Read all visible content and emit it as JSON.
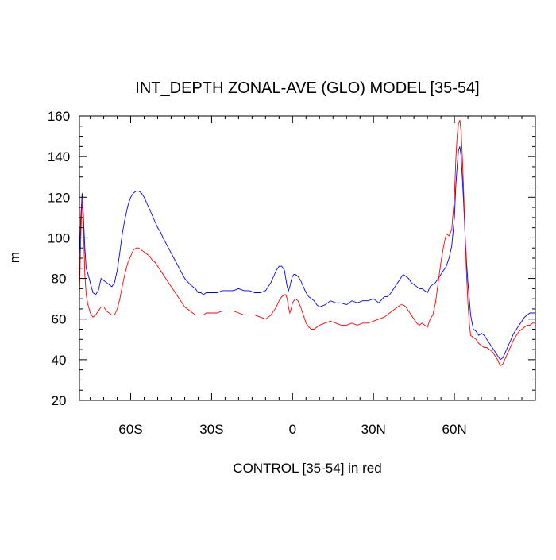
{
  "chart_data": {
    "type": "line",
    "title": "INT_DEPTH ZONAL-AVE (GLO) MODEL [35-54]",
    "xlabel": "CONTROL [35-54] in red",
    "ylabel": "m",
    "xlim": [
      -79,
      90
    ],
    "ylim": [
      20,
      160
    ],
    "x_ticks": [
      {
        "value": -60,
        "label": "60S"
      },
      {
        "value": -30,
        "label": "30S"
      },
      {
        "value": 0,
        "label": "0"
      },
      {
        "value": 30,
        "label": "30N"
      },
      {
        "value": 60,
        "label": "60N"
      }
    ],
    "y_ticks": [
      20,
      40,
      60,
      80,
      100,
      120,
      140,
      160
    ],
    "grid": false,
    "series": [
      {
        "color": "#0000ff",
        "x": [
          -79,
          -78.5,
          -78,
          -77.5,
          -77,
          -76.5,
          -76,
          -75,
          -74,
          -73,
          -72,
          -71,
          -70,
          -69,
          -68,
          -67,
          -66,
          -65,
          -64,
          -63,
          -62,
          -61,
          -60,
          -59,
          -58,
          -57,
          -56,
          -55,
          -54,
          -53,
          -52,
          -51,
          -50,
          -49,
          -48,
          -46,
          -44,
          -42,
          -40,
          -38,
          -36,
          -35,
          -34,
          -33,
          -32,
          -31,
          -30,
          -29,
          -28,
          -26,
          -24,
          -22,
          -20,
          -18,
          -16,
          -14,
          -12,
          -10,
          -8,
          -7,
          -6,
          -5,
          -4,
          -3,
          -2.5,
          -2,
          -1.5,
          -1,
          -0.5,
          0,
          0.5,
          1,
          2,
          3,
          4,
          5,
          6,
          7,
          8,
          9,
          10,
          12,
          14,
          16,
          18,
          20,
          22,
          24,
          26,
          28,
          30,
          32,
          34,
          35,
          36,
          37,
          38,
          39,
          40,
          41,
          42,
          43,
          44,
          45,
          46,
          47,
          48,
          49,
          50,
          51,
          52,
          53,
          54,
          55,
          56,
          57,
          58,
          59,
          60,
          60.5,
          61,
          61.5,
          62,
          62.5,
          63,
          63.5,
          64,
          64.5,
          65,
          65.5,
          66,
          67,
          68,
          69,
          70,
          71,
          72,
          73,
          74,
          75,
          76,
          77,
          78,
          79,
          80,
          81,
          82,
          83,
          84,
          85,
          86,
          87,
          88,
          89,
          90
        ],
        "y": [
          88,
          110,
          122,
          110,
          95,
          85,
          83,
          78,
          73,
          72,
          74,
          80,
          79,
          78,
          77,
          76,
          78,
          84,
          93,
          103,
          110,
          116,
          120,
          122,
          123,
          123,
          122,
          120,
          117,
          114,
          111,
          108,
          105,
          103,
          100,
          95,
          90,
          85,
          80,
          77,
          75,
          73,
          73,
          72,
          73,
          73,
          73,
          73,
          73,
          74,
          74,
          74,
          75,
          74,
          74,
          73,
          73,
          74,
          78,
          81,
          84,
          86,
          86,
          84,
          80,
          76,
          74,
          76,
          79,
          81,
          82,
          82,
          81,
          79,
          76,
          73,
          71,
          70,
          69,
          67,
          66,
          67,
          69,
          68,
          68,
          67,
          69,
          68,
          69,
          69,
          70,
          68,
          71,
          71,
          72,
          74,
          76,
          78,
          80,
          82,
          81,
          80,
          78,
          77,
          76,
          75,
          75,
          74,
          73,
          76,
          77,
          78,
          80,
          82,
          84,
          86,
          90,
          96,
          110,
          125,
          135,
          143,
          145,
          140,
          128,
          115,
          100,
          88,
          78,
          70,
          62,
          55,
          54,
          52,
          53,
          52,
          50,
          48,
          46,
          44,
          42,
          40,
          41,
          44,
          47,
          50,
          53,
          55,
          57,
          59,
          61,
          62,
          63,
          63,
          63
        ]
      },
      {
        "color": "#ff0000",
        "x": [
          -79,
          -78.5,
          -78,
          -77.5,
          -77,
          -76.5,
          -76,
          -75,
          -74,
          -73,
          -72,
          -71,
          -70,
          -69,
          -68,
          -67,
          -66,
          -65,
          -64,
          -63,
          -62,
          -61,
          -60,
          -59,
          -58,
          -57,
          -56,
          -55,
          -54,
          -53,
          -52,
          -51,
          -50,
          -49,
          -48,
          -46,
          -44,
          -42,
          -40,
          -38,
          -36,
          -35,
          -34,
          -33,
          -32,
          -31,
          -30,
          -29,
          -28,
          -26,
          -24,
          -22,
          -20,
          -18,
          -16,
          -14,
          -12,
          -10,
          -8,
          -7,
          -6,
          -5,
          -4,
          -3,
          -2.5,
          -2,
          -1.5,
          -1,
          -0.5,
          0,
          0.5,
          1,
          2,
          3,
          4,
          5,
          6,
          7,
          8,
          9,
          10,
          12,
          14,
          16,
          18,
          20,
          22,
          24,
          26,
          28,
          30,
          32,
          34,
          35,
          36,
          37,
          38,
          39,
          40,
          41,
          42,
          43,
          44,
          45,
          46,
          47,
          48,
          49,
          50,
          51,
          52,
          53,
          54,
          55,
          56,
          57,
          58,
          59,
          60,
          60.5,
          61,
          61.5,
          62,
          62.5,
          63,
          63.5,
          64,
          64.5,
          65,
          65.5,
          66,
          67,
          68,
          69,
          70,
          71,
          72,
          73,
          74,
          75,
          76,
          77,
          78,
          79,
          80,
          81,
          82,
          83,
          84,
          85,
          86,
          87,
          88,
          89,
          90
        ],
        "y": [
          72,
          100,
          120,
          105,
          82,
          72,
          68,
          63,
          61,
          62,
          64,
          66,
          66,
          64,
          63,
          62,
          62,
          65,
          70,
          77,
          83,
          88,
          91,
          94,
          95,
          95,
          94,
          93,
          92,
          91,
          89,
          88,
          86,
          84,
          82,
          78,
          74,
          70,
          66,
          64,
          62,
          62,
          62,
          62,
          63,
          63,
          63,
          63,
          63,
          64,
          64,
          64,
          63,
          62,
          62,
          62,
          61,
          60,
          62,
          64,
          66,
          69,
          71,
          72,
          72,
          70,
          66,
          63,
          65,
          68,
          69,
          70,
          69,
          66,
          62,
          58,
          56,
          55,
          55,
          56,
          57,
          58,
          59,
          58,
          57,
          57,
          58,
          57,
          58,
          58,
          59,
          60,
          61,
          62,
          63,
          64,
          65,
          66,
          67,
          67,
          66,
          64,
          62,
          60,
          58,
          57,
          58,
          57,
          56,
          60,
          62,
          68,
          78,
          88,
          96,
          102,
          101,
          104,
          120,
          138,
          150,
          156,
          158,
          152,
          138,
          120,
          100,
          82,
          68,
          58,
          52,
          51,
          50,
          48,
          47,
          46,
          46,
          45,
          44,
          42,
          40,
          37,
          38,
          41,
          44,
          47,
          50,
          52,
          54,
          55,
          56,
          57,
          57,
          58,
          58
        ]
      }
    ]
  }
}
